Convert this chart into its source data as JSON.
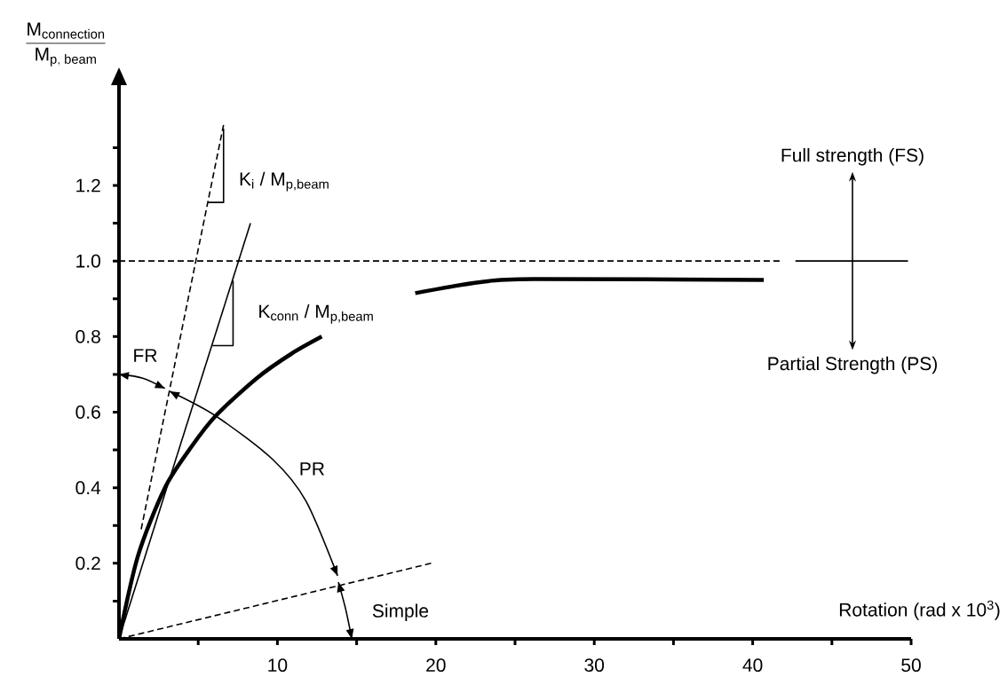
{
  "chart_data": {
    "type": "line",
    "xlabel": "Rotation (rad x 10$^{3}$)",
    "ylabel": "\\dfrac{\\mathrm{M}_{\\mathrm{connection}}}{\\mathrm{M}_{\\mathrm{p,\\;beam}}}",
    "xlim": [
      0,
      50
    ],
    "ylim": [
      0,
      1.47
    ],
    "xticks": [
      {
        "value": 5,
        "label": null
      },
      10,
      {
        "value": 15,
        "label": null
      },
      20,
      {
        "value": 25,
        "label": null
      },
      30,
      {
        "value": 35,
        "label": null
      },
      40,
      {
        "value": 45,
        "label": null
      },
      50
    ],
    "yticks": [
      {
        "value": 0.1,
        "label": null
      },
      0.2,
      {
        "value": 0.3,
        "label": null
      },
      0.4,
      {
        "value": 0.5,
        "label": null
      },
      0.6,
      {
        "value": 0.7,
        "label": null
      },
      0.8,
      {
        "value": 0.9,
        "label": null
      },
      {
        "value": 1,
        "label": "1.0"
      },
      {
        "value": 1.1,
        "label": null
      },
      1.2,
      {
        "value": 1.3,
        "label": null
      }
    ],
    "series": [
      {
        "color": "#000000",
        "line_style": "solid",
        "x": [
          0,
          1.2,
          2.9,
          4.6,
          6.1,
          8.7,
          10.9,
          12.8,
          15.8,
          18.7,
          22.8,
          26.2,
          40.7
        ],
        "values": [
          0,
          0.22,
          0.4,
          0.51,
          0.59,
          0.69,
          0.755,
          0.8,
          null,
          0.915,
          0.944,
          0.952,
          0.95
        ]
      },
      {
        "color": "#000000",
        "line_style": "dashed",
        "x": [
          1.4,
          6.6
        ],
        "values": [
          0.29,
          1.36
        ]
      },
      {
        "color": "#000000",
        "line_style": "solid",
        "x": [
          5.6,
          6.6,
          6.6
        ],
        "values": [
          1.155,
          1.155,
          1.35
        ]
      },
      {
        "color": "#000000",
        "line_style": "solid",
        "x": [
          0,
          8.3
        ],
        "values": [
          0,
          1.1
        ]
      },
      {
        "color": "#000000",
        "line_style": "solid",
        "x": [
          5.9,
          7.2,
          7.2
        ],
        "values": [
          0.776,
          0.776,
          0.948
        ]
      },
      {
        "color": "#000000",
        "line_style": "dashed",
        "x": [
          0,
          19.7
        ],
        "values": [
          0,
          0.2
        ]
      },
      {
        "color": "#000000",
        "line_style": "solid",
        "x": [
          0,
          1.5,
          2.9
        ],
        "values": [
          0.7,
          0.69,
          0.663
        ]
      },
      {
        "color": "#000000",
        "line_style": "solid",
        "x": [
          3.2,
          6.1,
          9.7,
          11.8,
          13.8
        ],
        "values": [
          0.655,
          0.59,
          0.475,
          0.365,
          0.167
        ]
      },
      {
        "color": "#000000",
        "line_style": "solid",
        "x": [
          13.85,
          14.3,
          14.7
        ],
        "values": [
          0.15,
          0.08,
          0
        ]
      },
      {
        "color": "#000000",
        "line_style": "dashed",
        "x": [
          0,
          41.7
        ],
        "values": [
          1,
          1
        ]
      },
      {
        "color": "#000000",
        "line_style": "solid",
        "x": [
          42.7,
          49.8
        ],
        "values": [
          1,
          1
        ]
      }
    ],
    "annotations": [
      "K$_{i}$ / M$_{p,beam}$",
      "K$_{conn}$ / M$_{p,beam}$",
      "FR",
      "PR",
      "Simple",
      "Full strength (FS)",
      "Partial Strength (PS)"
    ]
  }
}
